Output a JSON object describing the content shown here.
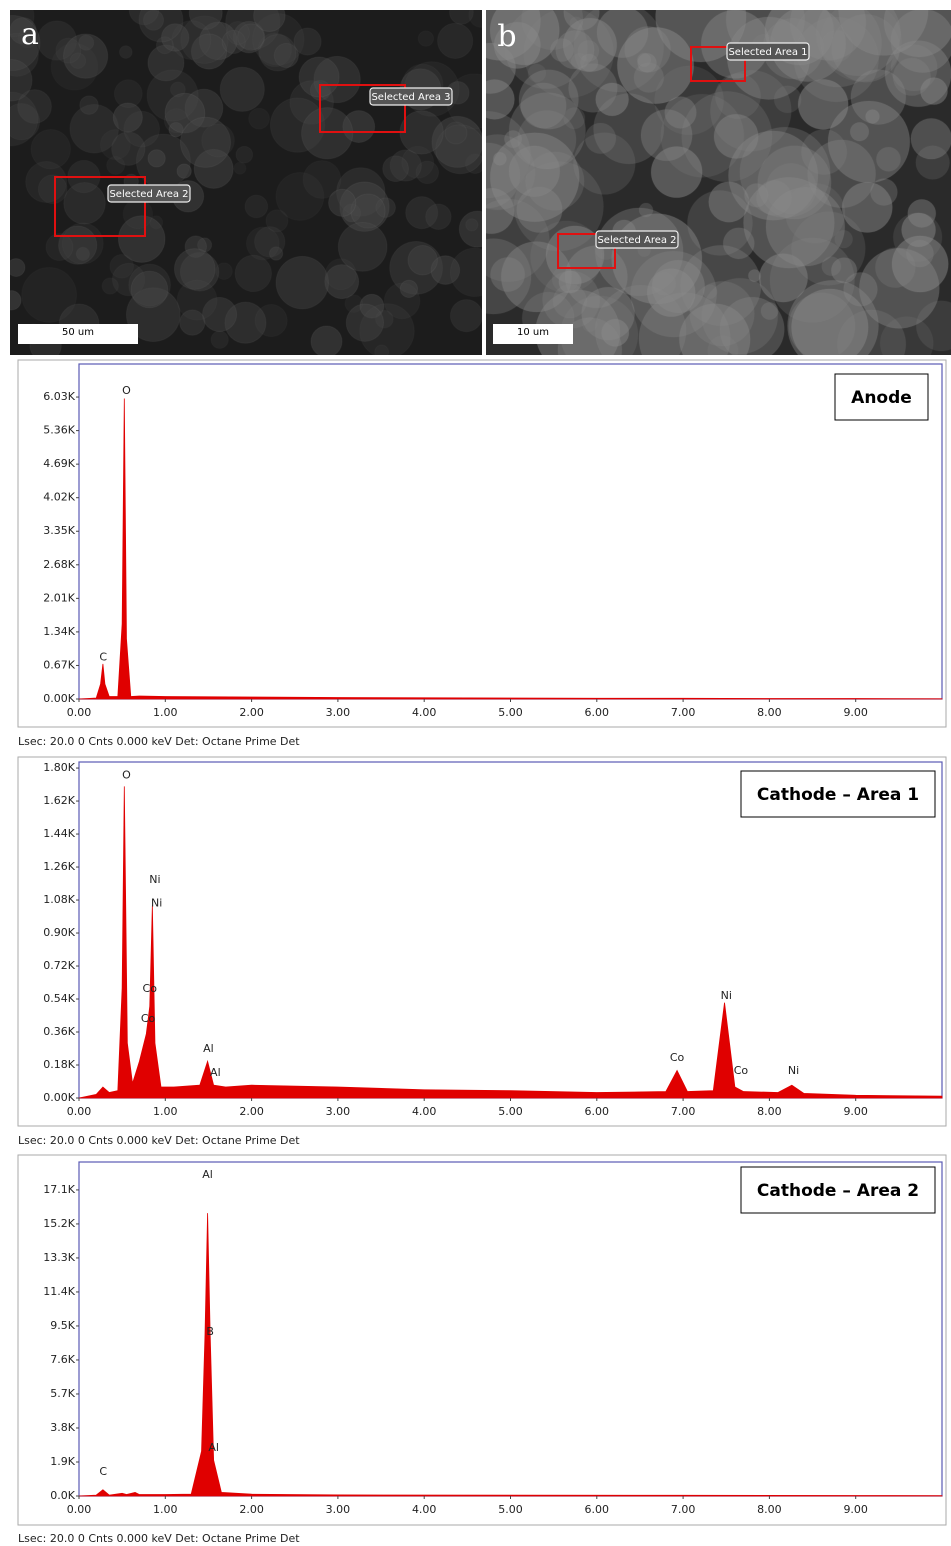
{
  "panels": [
    {
      "letter": "a",
      "scale_bar": "50 um",
      "regions": [
        "Selected Area 3",
        "Selected Area 2"
      ]
    },
    {
      "letter": "b",
      "scale_bar": "10 um",
      "regions": [
        "Selected Area 1",
        "Selected Area 2"
      ]
    }
  ],
  "chart_data": [
    {
      "type": "area",
      "title": "Anode",
      "color": "#e00000",
      "footer": "Lsec: 20.0 0 Cnts  0.000 keV Det: Octane Prime Det",
      "x": [
        0,
        0.2,
        0.25,
        0.277,
        0.3,
        0.35,
        0.45,
        0.5,
        0.525,
        0.55,
        0.6,
        0.7,
        1,
        2,
        3,
        4,
        5,
        6,
        7,
        8,
        9,
        10
      ],
      "values": [
        0,
        20,
        300,
        700,
        300,
        50,
        50,
        1500,
        6000,
        1200,
        50,
        60,
        50,
        40,
        30,
        25,
        20,
        15,
        15,
        10,
        10,
        5
      ],
      "xlim": [
        0,
        10
      ],
      "ylim": [
        0,
        6690
      ],
      "xticks": [
        {
          "value": 0,
          "label": "0.00"
        },
        {
          "value": 1,
          "label": "1.00"
        },
        {
          "value": 2,
          "label": "2.00"
        },
        {
          "value": 3,
          "label": "3.00"
        },
        {
          "value": 4,
          "label": "4.00"
        },
        {
          "value": 5,
          "label": "5.00"
        },
        {
          "value": 6,
          "label": "6.00"
        },
        {
          "value": 7,
          "label": "7.00"
        },
        {
          "value": 8,
          "label": "8.00"
        },
        {
          "value": 9,
          "label": "9.00"
        }
      ],
      "yticks": [
        {
          "value": 0,
          "label": "0.00K"
        },
        {
          "value": 670,
          "label": "0.67K"
        },
        {
          "value": 1340,
          "label": "1.34K"
        },
        {
          "value": 2010,
          "label": "2.01K"
        },
        {
          "value": 2680,
          "label": "2.68K"
        },
        {
          "value": 3350,
          "label": "3.35K"
        },
        {
          "value": 4020,
          "label": "4.02K"
        },
        {
          "value": 4690,
          "label": "4.69K"
        },
        {
          "value": 5360,
          "label": "5.36K"
        },
        {
          "value": 6030,
          "label": "6.03K"
        }
      ],
      "annotations": [
        {
          "text": "C",
          "x": 0.28,
          "y": 830
        },
        {
          "text": "O",
          "x": 0.55,
          "y": 6150
        }
      ]
    },
    {
      "type": "area",
      "title": "Cathode – Area 1",
      "color": "#e00000",
      "footer": "Lsec: 20.0 0 Cnts  0.000 keV Det: Octane Prime Det",
      "x": [
        0,
        0.2,
        0.277,
        0.35,
        0.45,
        0.5,
        0.525,
        0.56,
        0.62,
        0.7,
        0.78,
        0.82,
        0.85,
        0.88,
        0.95,
        1.1,
        1.4,
        1.49,
        1.56,
        1.7,
        2,
        3,
        4,
        5,
        6,
        6.8,
        6.93,
        7.05,
        7.35,
        7.48,
        7.6,
        7.7,
        8.1,
        8.26,
        8.4,
        9,
        10
      ],
      "values": [
        0,
        20,
        60,
        30,
        40,
        600,
        1700,
        300,
        80,
        200,
        350,
        500,
        1050,
        300,
        60,
        60,
        70,
        200,
        70,
        60,
        70,
        60,
        45,
        40,
        30,
        35,
        150,
        35,
        40,
        520,
        60,
        35,
        30,
        70,
        25,
        15,
        10
      ],
      "xlim": [
        0,
        10
      ],
      "ylim": [
        0,
        1833
      ],
      "xticks": [
        {
          "value": 0,
          "label": "0.00"
        },
        {
          "value": 1,
          "label": "1.00"
        },
        {
          "value": 2,
          "label": "2.00"
        },
        {
          "value": 3,
          "label": "3.00"
        },
        {
          "value": 4,
          "label": "4.00"
        },
        {
          "value": 5,
          "label": "5.00"
        },
        {
          "value": 6,
          "label": "6.00"
        },
        {
          "value": 7,
          "label": "7.00"
        },
        {
          "value": 8,
          "label": "8.00"
        },
        {
          "value": 9,
          "label": "9.00"
        }
      ],
      "yticks": [
        {
          "value": 0,
          "label": "0.00K"
        },
        {
          "value": 180,
          "label": "0.18K"
        },
        {
          "value": 360,
          "label": "0.36K"
        },
        {
          "value": 540,
          "label": "0.54K"
        },
        {
          "value": 720,
          "label": "0.72K"
        },
        {
          "value": 900,
          "label": "0.90K"
        },
        {
          "value": 1080,
          "label": "1.08K"
        },
        {
          "value": 1260,
          "label": "1.26K"
        },
        {
          "value": 1440,
          "label": "1.44K"
        },
        {
          "value": 1620,
          "label": "1.62K"
        },
        {
          "value": 1800,
          "label": "1.80K"
        }
      ],
      "annotations": [
        {
          "text": "O",
          "x": 0.55,
          "y": 1760
        },
        {
          "text": "Ni",
          "x": 0.88,
          "y": 1190
        },
        {
          "text": "Ni",
          "x": 0.9,
          "y": 1060
        },
        {
          "text": "Co",
          "x": 0.82,
          "y": 595
        },
        {
          "text": "Co",
          "x": 0.8,
          "y": 430
        },
        {
          "text": "Al",
          "x": 1.5,
          "y": 267
        },
        {
          "text": "Al",
          "x": 1.58,
          "y": 136
        },
        {
          "text": "Co",
          "x": 6.93,
          "y": 218
        },
        {
          "text": "Ni",
          "x": 7.5,
          "y": 556
        },
        {
          "text": "Co",
          "x": 7.67,
          "y": 147
        },
        {
          "text": "Ni",
          "x": 8.28,
          "y": 147
        }
      ]
    },
    {
      "type": "area",
      "title": "Cathode – Area 2",
      "color": "#e00000",
      "footer": "Lsec: 20.0 0 Cnts  0.000 keV Det: Octane Prime Det",
      "x": [
        0,
        0.2,
        0.277,
        0.35,
        0.5,
        0.55,
        0.65,
        0.7,
        1,
        1.3,
        1.42,
        1.46,
        1.49,
        1.52,
        1.56,
        1.65,
        2,
        3,
        5,
        7,
        9,
        10
      ],
      "values": [
        0,
        50,
        350,
        50,
        150,
        80,
        200,
        80,
        80,
        100,
        2500,
        9000,
        15800,
        9000,
        2000,
        200,
        100,
        60,
        50,
        40,
        30,
        20
      ],
      "xlim": [
        0,
        10
      ],
      "ylim": [
        0,
        18660
      ],
      "xticks": [
        {
          "value": 0,
          "label": "0.00"
        },
        {
          "value": 1,
          "label": "1.00"
        },
        {
          "value": 2,
          "label": "2.00"
        },
        {
          "value": 3,
          "label": "3.00"
        },
        {
          "value": 4,
          "label": "4.00"
        },
        {
          "value": 5,
          "label": "5.00"
        },
        {
          "value": 6,
          "label": "6.00"
        },
        {
          "value": 7,
          "label": "7.00"
        },
        {
          "value": 8,
          "label": "8.00"
        },
        {
          "value": 9,
          "label": "9.00"
        }
      ],
      "yticks": [
        {
          "value": 0,
          "label": "0.0K"
        },
        {
          "value": 1900,
          "label": "1.9K"
        },
        {
          "value": 3800,
          "label": "3.8K"
        },
        {
          "value": 5700,
          "label": "5.7K"
        },
        {
          "value": 7600,
          "label": "7.6K"
        },
        {
          "value": 9500,
          "label": "9.5K"
        },
        {
          "value": 11400,
          "label": "11.4K"
        },
        {
          "value": 13300,
          "label": "13.3K"
        },
        {
          "value": 15200,
          "label": "15.2K"
        },
        {
          "value": 17100,
          "label": "17.1K"
        }
      ],
      "annotations": [
        {
          "text": "Al",
          "x": 1.49,
          "y": 17940
        },
        {
          "text": "B",
          "x": 1.52,
          "y": 9160
        },
        {
          "text": "Al",
          "x": 1.56,
          "y": 2680
        },
        {
          "text": "C",
          "x": 0.28,
          "y": 1340
        }
      ]
    }
  ]
}
